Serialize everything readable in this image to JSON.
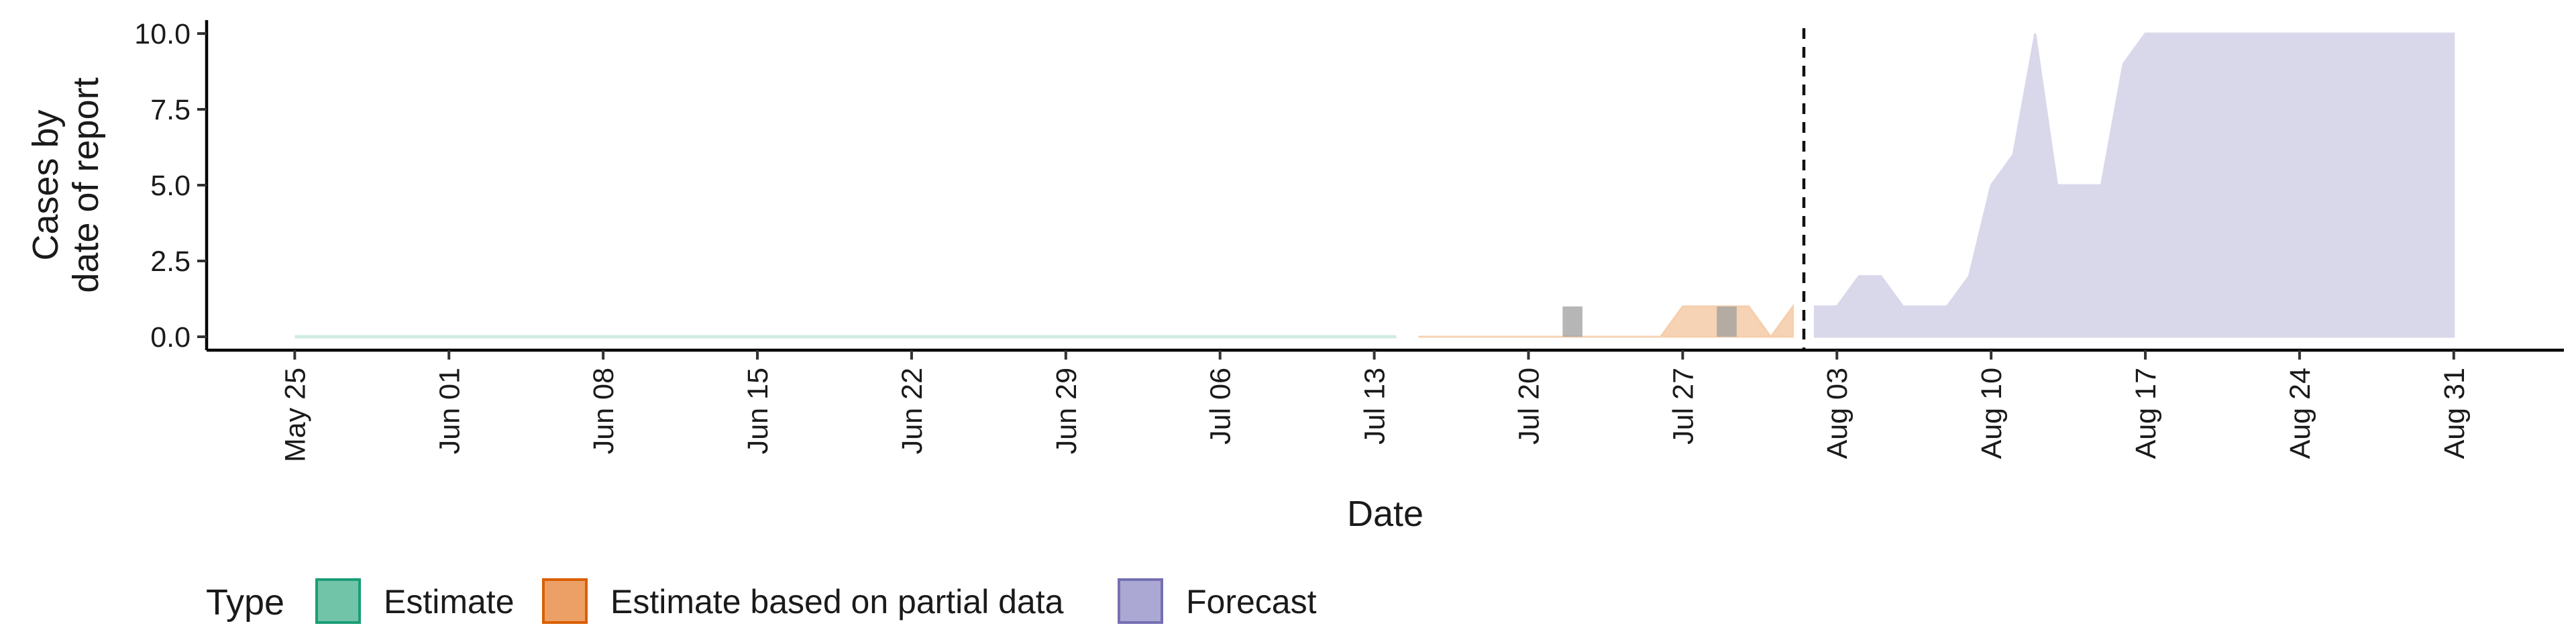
{
  "chart_data": {
    "type": "area",
    "title": "",
    "xlabel": "Date",
    "ylabel": [
      "Cases by",
      "date of report"
    ],
    "ylim": [
      0,
      10.5
    ],
    "yticks": [
      0,
      2.5,
      5,
      7.5,
      10
    ],
    "ytick_labels": [
      "0.0",
      "2.5",
      "5.0",
      "7.5",
      "10.0"
    ],
    "xlim": [
      "2020-05-21",
      "2020-09-05"
    ],
    "xticks": [
      "2020-05-25",
      "2020-06-01",
      "2020-06-08",
      "2020-06-15",
      "2020-06-22",
      "2020-06-29",
      "2020-07-06",
      "2020-07-13",
      "2020-07-20",
      "2020-07-27",
      "2020-08-03",
      "2020-08-10",
      "2020-08-17",
      "2020-08-24",
      "2020-08-31"
    ],
    "xtick_labels": [
      "May 25",
      "Jun 01",
      "Jun 08",
      "Jun 15",
      "Jun 22",
      "Jun 29",
      "Jul 06",
      "Jul 13",
      "Jul 20",
      "Jul 27",
      "Aug 03",
      "Aug 10",
      "Aug 17",
      "Aug 24",
      "Aug 31"
    ],
    "vline_date": "2020-08-01",
    "grid": false,
    "legend": {
      "title": "Type",
      "position": "bottom",
      "entries": [
        {
          "label": "Estimate",
          "fill": "#72c4a8",
          "stroke": "#1b9e77"
        },
        {
          "label": "Estimate based on partial data",
          "fill": "#eca065",
          "stroke": "#d95f02"
        },
        {
          "label": "Forecast",
          "fill": "#aba8d3",
          "stroke": "#7570b3"
        }
      ]
    },
    "series": [
      {
        "name": "Estimate",
        "color": "#b2dfcf",
        "opacity": 0.6,
        "x": [
          "2020-05-25",
          "2020-07-14"
        ],
        "lower": [
          0,
          0
        ],
        "upper": [
          0,
          0
        ]
      },
      {
        "name": "Estimate based on partial data",
        "color": "#f5cba7",
        "opacity": 0.85,
        "x": [
          "2020-07-15",
          "2020-07-16",
          "2020-07-17",
          "2020-07-18",
          "2020-07-19",
          "2020-07-20",
          "2020-07-21",
          "2020-07-22",
          "2020-07-23",
          "2020-07-24",
          "2020-07-25",
          "2020-07-26",
          "2020-07-27",
          "2020-07-28",
          "2020-07-29",
          "2020-07-30",
          "2020-07-31",
          "2020-08-01"
        ],
        "lower": [
          0,
          0,
          0,
          0,
          0,
          0,
          0,
          0,
          0,
          0,
          0,
          0,
          0,
          0,
          0,
          0,
          0,
          0
        ],
        "upper": [
          0,
          0,
          0,
          0,
          0,
          0,
          0,
          0,
          0,
          0,
          0,
          0,
          1,
          1,
          1,
          1,
          0,
          1
        ]
      },
      {
        "name": "Forecast",
        "color": "#d9d8eb",
        "opacity": 1,
        "x": [
          "2020-08-02",
          "2020-08-03",
          "2020-08-04",
          "2020-08-05",
          "2020-08-06",
          "2020-08-07",
          "2020-08-08",
          "2020-08-09",
          "2020-08-10",
          "2020-08-11",
          "2020-08-12",
          "2020-08-13",
          "2020-08-14",
          "2020-08-15",
          "2020-08-16",
          "2020-08-17",
          "2020-08-18",
          "2020-08-19",
          "2020-08-20",
          "2020-08-21",
          "2020-08-22",
          "2020-08-23",
          "2020-08-24",
          "2020-08-25",
          "2020-08-26",
          "2020-08-27",
          "2020-08-28",
          "2020-08-29",
          "2020-08-30",
          "2020-08-31"
        ],
        "lower": [
          0,
          0,
          0,
          0,
          0,
          0,
          0,
          0,
          0,
          0,
          0,
          0,
          0,
          0,
          0,
          0,
          0,
          0,
          0,
          0,
          0,
          0,
          0,
          0,
          0,
          0,
          0,
          0,
          0,
          0
        ],
        "upper": [
          1,
          1,
          2,
          2,
          1,
          1,
          1,
          2,
          5,
          6,
          10,
          5,
          5,
          5,
          9,
          10,
          10,
          10,
          10,
          10,
          10,
          10,
          10,
          10,
          10,
          10,
          10,
          10,
          10,
          10
        ]
      }
    ],
    "bars": [
      {
        "date": "2020-07-22",
        "value": 1,
        "color": "#9e9e9e"
      },
      {
        "date": "2020-07-29",
        "value": 1,
        "color": "#9e9e9e"
      }
    ]
  }
}
